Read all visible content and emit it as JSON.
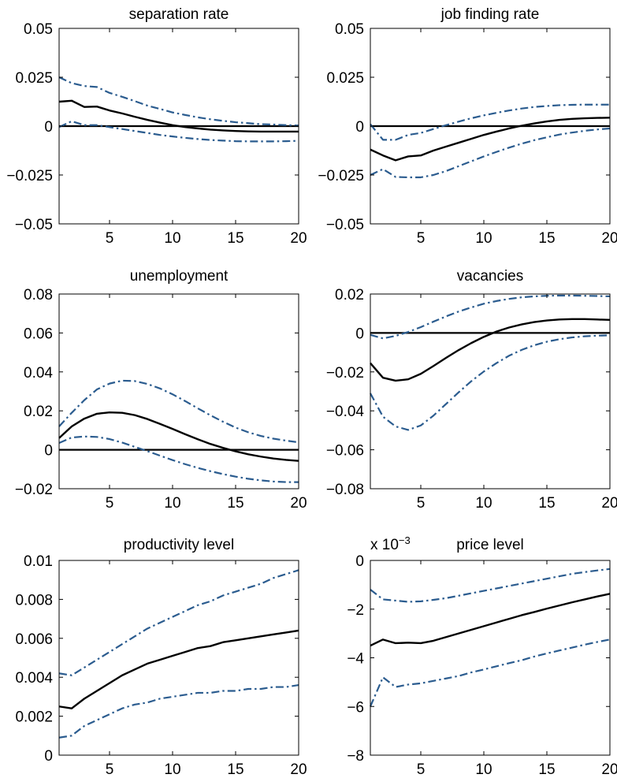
{
  "colors": {
    "estimate": "#000000",
    "band": "#2b5c8f",
    "axis": "#000000",
    "background": "#ffffff"
  },
  "chart_data": [
    {
      "type": "line",
      "title": "separation rate",
      "xlim": [
        1,
        20
      ],
      "ylim": [
        -0.05,
        0.05
      ],
      "xticks": [
        5,
        10,
        15,
        20
      ],
      "xtick_labels": [
        "5",
        "10",
        "15",
        "20"
      ],
      "yticks": [
        -0.05,
        -0.025,
        0,
        0.025,
        0.05
      ],
      "ytick_labels": [
        "−0.05",
        "−0.025",
        "0",
        "0.025",
        "0.05"
      ],
      "exponent_label": "",
      "zero_line": 0,
      "x": [
        1,
        2,
        3,
        4,
        5,
        6,
        7,
        8,
        9,
        10,
        11,
        12,
        13,
        14,
        15,
        16,
        17,
        18,
        19,
        20
      ],
      "series": [
        {
          "role": "estimate",
          "style": "solid",
          "values": [
            0.0125,
            0.013,
            0.0098,
            0.01,
            0.008,
            0.0065,
            0.0048,
            0.0032,
            0.0018,
            0.0005,
            -0.0005,
            -0.0012,
            -0.0018,
            -0.0022,
            -0.0025,
            -0.0027,
            -0.0028,
            -0.0028,
            -0.0028,
            -0.0028
          ]
        },
        {
          "role": "upper",
          "style": "dashdot",
          "values": [
            0.025,
            0.022,
            0.0205,
            0.02,
            0.017,
            0.015,
            0.0128,
            0.0105,
            0.0088,
            0.007,
            0.0057,
            0.0045,
            0.0035,
            0.0027,
            0.002,
            0.0015,
            0.001,
            0.0008,
            0.0005,
            0.0003
          ]
        },
        {
          "role": "lower",
          "style": "dashdot",
          "values": [
            -0.0005,
            0.0025,
            0.0005,
            0.0005,
            -0.0005,
            -0.0015,
            -0.0025,
            -0.0035,
            -0.0045,
            -0.0053,
            -0.006,
            -0.0066,
            -0.0071,
            -0.0074,
            -0.0077,
            -0.0078,
            -0.0078,
            -0.0078,
            -0.0077,
            -0.0075
          ]
        }
      ]
    },
    {
      "type": "line",
      "title": "job finding rate",
      "xlim": [
        1,
        20
      ],
      "ylim": [
        -0.05,
        0.05
      ],
      "xticks": [
        5,
        10,
        15,
        20
      ],
      "xtick_labels": [
        "5",
        "10",
        "15",
        "20"
      ],
      "yticks": [
        -0.05,
        -0.025,
        0,
        0.025,
        0.05
      ],
      "ytick_labels": [
        "−0.05",
        "−0.025",
        "0",
        "0.025",
        "0.05"
      ],
      "exponent_label": "",
      "zero_line": 0,
      "x": [
        1,
        2,
        3,
        4,
        5,
        6,
        7,
        8,
        9,
        10,
        11,
        12,
        13,
        14,
        15,
        16,
        17,
        18,
        19,
        20
      ],
      "series": [
        {
          "role": "estimate",
          "style": "solid",
          "values": [
            -0.012,
            -0.015,
            -0.0175,
            -0.0155,
            -0.015,
            -0.0125,
            -0.0105,
            -0.0085,
            -0.0065,
            -0.0045,
            -0.0028,
            -0.0012,
            0.0002,
            0.0014,
            0.0024,
            0.0032,
            0.0037,
            0.004,
            0.0042,
            0.0043
          ]
        },
        {
          "role": "upper",
          "style": "dashdot",
          "values": [
            0.001,
            -0.007,
            -0.007,
            -0.0045,
            -0.0035,
            -0.0015,
            0.0005,
            0.0023,
            0.004,
            0.0055,
            0.0068,
            0.008,
            0.009,
            0.0098,
            0.0103,
            0.0107,
            0.0109,
            0.011,
            0.011,
            0.011
          ]
        },
        {
          "role": "lower",
          "style": "dashdot",
          "values": [
            -0.025,
            -0.022,
            -0.026,
            -0.0262,
            -0.0262,
            -0.025,
            -0.023,
            -0.0205,
            -0.018,
            -0.0155,
            -0.0132,
            -0.011,
            -0.009,
            -0.0072,
            -0.0057,
            -0.0043,
            -0.0033,
            -0.0024,
            -0.0017,
            -0.0012
          ]
        }
      ]
    },
    {
      "type": "line",
      "title": "unemployment",
      "xlim": [
        1,
        20
      ],
      "ylim": [
        -0.02,
        0.08
      ],
      "xticks": [
        5,
        10,
        15,
        20
      ],
      "xtick_labels": [
        "5",
        "10",
        "15",
        "20"
      ],
      "yticks": [
        -0.02,
        0,
        0.02,
        0.04,
        0.06,
        0.08
      ],
      "ytick_labels": [
        "−0.02",
        "0",
        "0.02",
        "0.04",
        "0.06",
        "0.08"
      ],
      "exponent_label": "",
      "zero_line": 0,
      "x": [
        1,
        2,
        3,
        4,
        5,
        6,
        7,
        8,
        9,
        10,
        11,
        12,
        13,
        14,
        15,
        16,
        17,
        18,
        19,
        20
      ],
      "series": [
        {
          "role": "estimate",
          "style": "solid",
          "values": [
            0.006,
            0.012,
            0.016,
            0.0185,
            0.0192,
            0.019,
            0.0178,
            0.0158,
            0.0133,
            0.0107,
            0.008,
            0.0054,
            0.003,
            0.001,
            -0.0008,
            -0.0023,
            -0.0035,
            -0.0045,
            -0.0052,
            -0.0057
          ]
        },
        {
          "role": "upper",
          "style": "dashdot",
          "values": [
            0.012,
            0.019,
            0.0255,
            0.031,
            0.034,
            0.0355,
            0.0353,
            0.0338,
            0.0315,
            0.0285,
            0.025,
            0.0213,
            0.0177,
            0.0144,
            0.0114,
            0.009,
            0.0071,
            0.0057,
            0.0047,
            0.0038
          ]
        },
        {
          "role": "lower",
          "style": "dashdot",
          "values": [
            0.0035,
            0.0063,
            0.0068,
            0.0066,
            0.0055,
            0.0037,
            0.0015,
            -0.0007,
            -0.003,
            -0.0053,
            -0.0074,
            -0.0093,
            -0.011,
            -0.0125,
            -0.0138,
            -0.0149,
            -0.0157,
            -0.0163,
            -0.0166,
            -0.0166
          ]
        }
      ]
    },
    {
      "type": "line",
      "title": "vacancies",
      "xlim": [
        1,
        20
      ],
      "ylim": [
        -0.08,
        0.02
      ],
      "xticks": [
        5,
        10,
        15,
        20
      ],
      "xtick_labels": [
        "5",
        "10",
        "15",
        "20"
      ],
      "yticks": [
        -0.08,
        -0.06,
        -0.04,
        -0.02,
        0,
        0.02
      ],
      "ytick_labels": [
        "−0.08",
        "−0.06",
        "−0.04",
        "−0.02",
        "0",
        "0.02"
      ],
      "exponent_label": "",
      "zero_line": 0,
      "x": [
        1,
        2,
        3,
        4,
        5,
        6,
        7,
        8,
        9,
        10,
        11,
        12,
        13,
        14,
        15,
        16,
        17,
        18,
        19,
        20
      ],
      "series": [
        {
          "role": "estimate",
          "style": "solid",
          "values": [
            -0.0155,
            -0.023,
            -0.0245,
            -0.0238,
            -0.021,
            -0.017,
            -0.0128,
            -0.0088,
            -0.0052,
            -0.002,
            0.0007,
            0.0028,
            0.0044,
            0.0056,
            0.0064,
            0.0069,
            0.0071,
            0.0071,
            0.0069,
            0.0067
          ]
        },
        {
          "role": "upper",
          "style": "dashdot",
          "values": [
            -0.001,
            -0.0028,
            -0.0015,
            0.0005,
            0.003,
            0.0058,
            0.0085,
            0.011,
            0.0131,
            0.015,
            0.0164,
            0.0175,
            0.0183,
            0.0188,
            0.0191,
            0.0192,
            0.0192,
            0.0191,
            0.019,
            0.0188
          ]
        },
        {
          "role": "lower",
          "style": "dashdot",
          "values": [
            -0.031,
            -0.043,
            -0.048,
            -0.0498,
            -0.0475,
            -0.0425,
            -0.0365,
            -0.0305,
            -0.0248,
            -0.0198,
            -0.0155,
            -0.0117,
            -0.0087,
            -0.0063,
            -0.0045,
            -0.0032,
            -0.0023,
            -0.0017,
            -0.0014,
            -0.0012
          ]
        }
      ]
    },
    {
      "type": "line",
      "title": "productivity level",
      "xlim": [
        1,
        20
      ],
      "ylim": [
        0,
        0.01
      ],
      "xticks": [
        5,
        10,
        15,
        20
      ],
      "xtick_labels": [
        "5",
        "10",
        "15",
        "20"
      ],
      "yticks": [
        0,
        0.002,
        0.004,
        0.006,
        0.008,
        0.01
      ],
      "ytick_labels": [
        "0",
        "0.002",
        "0.004",
        "0.006",
        "0.008",
        "0.01"
      ],
      "exponent_label": "",
      "zero_line": null,
      "x": [
        1,
        2,
        3,
        4,
        5,
        6,
        7,
        8,
        9,
        10,
        11,
        12,
        13,
        14,
        15,
        16,
        17,
        18,
        19,
        20
      ],
      "series": [
        {
          "role": "estimate",
          "style": "solid",
          "values": [
            0.0025,
            0.0024,
            0.0029,
            0.0033,
            0.0037,
            0.0041,
            0.0044,
            0.0047,
            0.0049,
            0.0051,
            0.0053,
            0.0055,
            0.0056,
            0.0058,
            0.0059,
            0.006,
            0.0061,
            0.0062,
            0.0063,
            0.0064
          ]
        },
        {
          "role": "upper",
          "style": "dashdot",
          "values": [
            0.0042,
            0.0041,
            0.0045,
            0.0049,
            0.0053,
            0.0057,
            0.0061,
            0.0065,
            0.0068,
            0.0071,
            0.0074,
            0.0077,
            0.0079,
            0.0082,
            0.0084,
            0.0086,
            0.0088,
            0.0091,
            0.0093,
            0.0095
          ]
        },
        {
          "role": "lower",
          "style": "dashdot",
          "values": [
            0.0009,
            0.001,
            0.0015,
            0.0018,
            0.0021,
            0.0024,
            0.0026,
            0.0027,
            0.0029,
            0.003,
            0.0031,
            0.0032,
            0.0032,
            0.0033,
            0.0033,
            0.0034,
            0.0034,
            0.0035,
            0.0035,
            0.0036
          ]
        }
      ]
    },
    {
      "type": "line",
      "title": "price level",
      "xlim": [
        1,
        20
      ],
      "ylim": [
        -8,
        0
      ],
      "y_scale_factor": 0.001,
      "xticks": [
        5,
        10,
        15,
        20
      ],
      "xtick_labels": [
        "5",
        "10",
        "15",
        "20"
      ],
      "yticks": [
        -8,
        -6,
        -4,
        -2,
        0
      ],
      "ytick_labels": [
        "−8",
        "−6",
        "−4",
        "−2",
        "0"
      ],
      "exponent_label": "x 10",
      "exponent_sup": "−3",
      "zero_line": null,
      "x": [
        1,
        2,
        3,
        4,
        5,
        6,
        7,
        8,
        9,
        10,
        11,
        12,
        13,
        14,
        15,
        16,
        17,
        18,
        19,
        20
      ],
      "series": [
        {
          "role": "estimate",
          "style": "solid",
          "values": [
            -3.5,
            -3.25,
            -3.4,
            -3.38,
            -3.4,
            -3.3,
            -3.15,
            -3.0,
            -2.85,
            -2.7,
            -2.55,
            -2.4,
            -2.25,
            -2.12,
            -1.98,
            -1.85,
            -1.72,
            -1.6,
            -1.48,
            -1.37
          ]
        },
        {
          "role": "upper",
          "style": "dashdot",
          "values": [
            -1.2,
            -1.6,
            -1.65,
            -1.7,
            -1.68,
            -1.62,
            -1.55,
            -1.45,
            -1.35,
            -1.25,
            -1.15,
            -1.05,
            -0.95,
            -0.85,
            -0.75,
            -0.65,
            -0.55,
            -0.48,
            -0.41,
            -0.35
          ]
        },
        {
          "role": "lower",
          "style": "dashdot",
          "values": [
            -6.0,
            -4.8,
            -5.2,
            -5.1,
            -5.05,
            -4.95,
            -4.85,
            -4.75,
            -4.6,
            -4.48,
            -4.35,
            -4.22,
            -4.1,
            -3.95,
            -3.82,
            -3.7,
            -3.58,
            -3.46,
            -3.35,
            -3.25
          ]
        }
      ]
    }
  ]
}
